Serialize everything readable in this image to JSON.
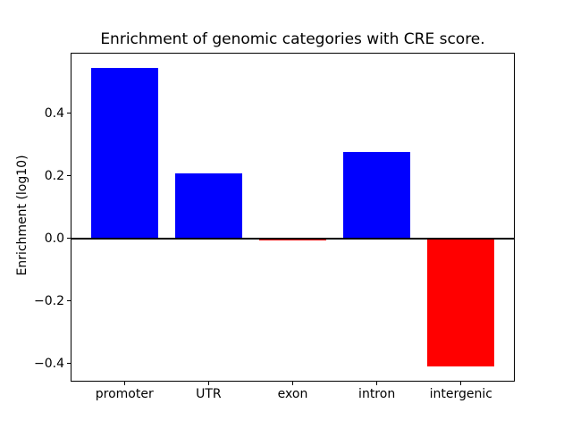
{
  "chart_data": {
    "type": "bar",
    "title": "Enrichment of genomic categories with CRE score.",
    "ylabel": "Enrichment (log10)",
    "xlabel": "",
    "categories": [
      "promoter",
      "UTR",
      "exon",
      "intron",
      "intergenic"
    ],
    "values": [
      0.545,
      0.207,
      -0.008,
      0.275,
      -0.41
    ],
    "bar_colors": [
      "#0000ff",
      "#0000ff",
      "#ff0000",
      "#0000ff",
      "#ff0000"
    ],
    "positive_color": "#0000ff",
    "negative_color": "#ff0000",
    "bar_width": 0.8,
    "yticks": [
      0.4,
      0.2,
      0.0,
      -0.2,
      -0.4
    ],
    "ytick_labels": [
      "0.4",
      "0.2",
      "0.0",
      "−0.2",
      "−0.4"
    ],
    "ylim": [
      -0.458,
      0.593
    ],
    "xlim": [
      -0.64,
      4.64
    ],
    "grid": false,
    "legend_visible": false,
    "zero_line": true,
    "axis_color": "#000000",
    "background_color": "#ffffff"
  }
}
